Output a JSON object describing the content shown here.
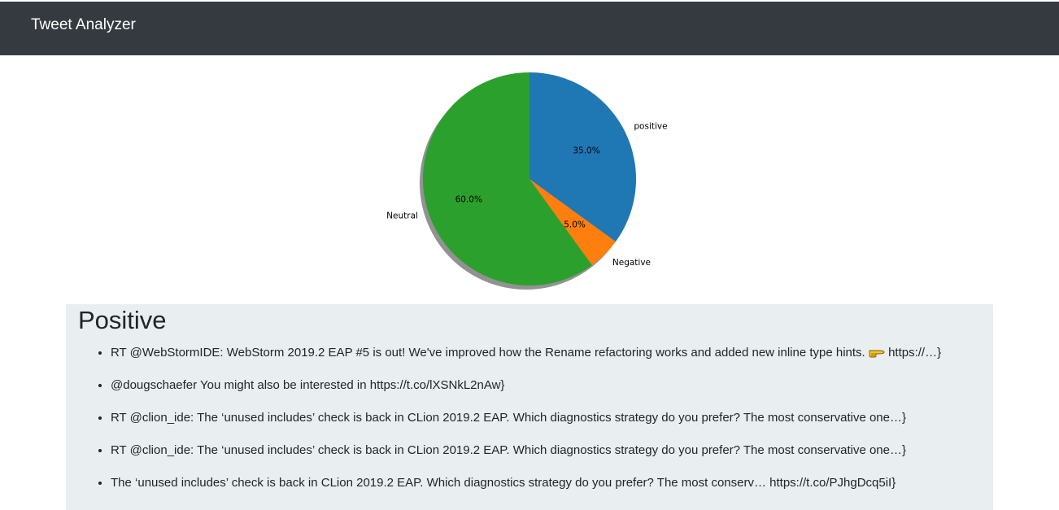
{
  "navbar": {
    "brand": "Tweet Analyzer",
    "background": "#343a40"
  },
  "chart_data": {
    "type": "pie",
    "categories": [
      "Neutral",
      "Negative",
      "positive"
    ],
    "values": [
      60.0,
      5.0,
      35.0
    ],
    "value_labels": [
      "60.0%",
      "5.0%",
      "35.0%"
    ],
    "colors": [
      "#2ca02c",
      "#ff7f0e",
      "#1f77b4"
    ],
    "shadow": true,
    "start_angle": "top, counter-clockwise",
    "title": ""
  },
  "section": {
    "title": "Positive",
    "background": "#e9eef0",
    "tweets": [
      {
        "text": "RT @WebStormIDE: WebStorm 2019.2 EAP #5 is out! We've improved how the Rename refactoring works and added new inline type hints.",
        "emoji": "backhand-index-pointing-right-icon",
        "tail": "https://…}"
      },
      {
        "text": "@dougschaefer You might also be interested in https://t.co/lXSNkL2nAw}"
      },
      {
        "text": "RT @clion_ide: The ‘unused includes’ check is back in CLion 2019.2 EAP. Which diagnostics strategy do you prefer? The most conservative one…}"
      },
      {
        "text": "RT @clion_ide: The ‘unused includes’ check is back in CLion 2019.2 EAP. Which diagnostics strategy do you prefer? The most conservative one…}"
      },
      {
        "text": "The ‘unused includes’ check is back in CLion 2019.2 EAP. Which diagnostics strategy do you prefer? The most conserv… https://t.co/PJhgDcq5iI}"
      }
    ]
  }
}
